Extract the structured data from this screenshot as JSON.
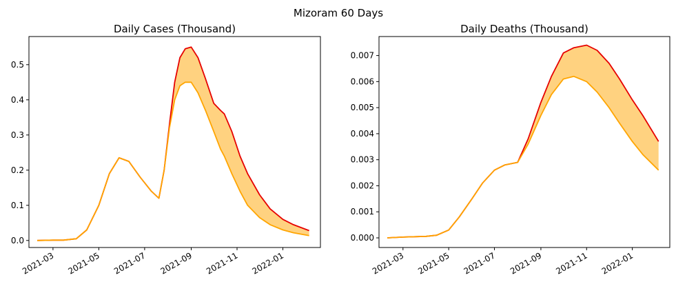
{
  "figure": {
    "suptitle": "Mizoram 60 Days"
  },
  "chart_data": [
    {
      "type": "area",
      "title": "Daily Cases (Thousand)",
      "xlabel": "",
      "ylabel": "",
      "x_ticks": [
        "2021-03",
        "2021-05",
        "2021-07",
        "2021-09",
        "2021-11",
        "2022-01"
      ],
      "y_ticks": [
        "0.0",
        "0.1",
        "0.2",
        "0.3",
        "0.4",
        "0.5"
      ],
      "xlim": [
        "2021-01-28",
        "2022-02-20"
      ],
      "ylim": [
        -0.02,
        0.58
      ],
      "grid": false,
      "colors": {
        "upper": "#e60000",
        "lower": "#ffa500",
        "fill": "#ffd280"
      },
      "x": [
        "2021-02-08",
        "2021-03-01",
        "2021-03-15",
        "2021-04-01",
        "2021-04-15",
        "2021-05-01",
        "2021-05-15",
        "2021-05-28",
        "2021-06-10",
        "2021-06-25",
        "2021-07-10",
        "2021-07-20",
        "2021-07-27",
        "2021-08-03",
        "2021-08-10",
        "2021-08-17",
        "2021-08-24",
        "2021-09-01",
        "2021-09-10",
        "2021-09-20",
        "2021-10-01",
        "2021-10-10",
        "2021-10-15",
        "2021-10-25",
        "2021-11-05",
        "2021-11-15",
        "2021-12-01",
        "2021-12-15",
        "2022-01-01",
        "2022-01-15",
        "2022-02-05"
      ],
      "series": [
        {
          "role": "upper",
          "values": [
            0.0,
            0.001,
            0.001,
            0.005,
            0.03,
            0.1,
            0.19,
            0.235,
            0.225,
            0.18,
            0.14,
            0.12,
            0.2,
            0.33,
            0.45,
            0.52,
            0.545,
            0.55,
            0.52,
            0.46,
            0.39,
            0.37,
            0.36,
            0.31,
            0.24,
            0.19,
            0.13,
            0.09,
            0.06,
            0.045,
            0.028
          ]
        },
        {
          "role": "lower",
          "values": [
            0.0,
            0.001,
            0.001,
            0.005,
            0.03,
            0.1,
            0.19,
            0.235,
            0.225,
            0.18,
            0.14,
            0.12,
            0.2,
            0.32,
            0.4,
            0.44,
            0.45,
            0.45,
            0.42,
            0.37,
            0.31,
            0.26,
            0.24,
            0.19,
            0.14,
            0.1,
            0.065,
            0.045,
            0.03,
            0.022,
            0.014
          ]
        }
      ]
    },
    {
      "type": "area",
      "title": "Daily Deaths (Thousand)",
      "xlabel": "",
      "ylabel": "",
      "x_ticks": [
        "2021-03",
        "2021-05",
        "2021-07",
        "2021-09",
        "2021-11",
        "2022-01"
      ],
      "y_ticks": [
        "0.000",
        "0.001",
        "0.002",
        "0.003",
        "0.004",
        "0.005",
        "0.006",
        "0.007"
      ],
      "xlim": [
        "2021-01-28",
        "2022-02-20"
      ],
      "ylim": [
        -0.00037,
        0.00773
      ],
      "grid": false,
      "colors": {
        "upper": "#e60000",
        "lower": "#ffa500",
        "fill": "#ffd280"
      },
      "x": [
        "2021-02-08",
        "2021-03-01",
        "2021-04-01",
        "2021-04-15",
        "2021-05-01",
        "2021-05-15",
        "2021-06-01",
        "2021-06-15",
        "2021-07-01",
        "2021-07-15",
        "2021-08-01",
        "2021-08-15",
        "2021-09-01",
        "2021-09-15",
        "2021-10-01",
        "2021-10-15",
        "2021-11-01",
        "2021-11-15",
        "2021-12-01",
        "2021-12-15",
        "2022-01-01",
        "2022-01-15",
        "2022-02-05"
      ],
      "series": [
        {
          "role": "upper",
          "values": [
            0.0,
            3e-05,
            6e-05,
            0.0001,
            0.0003,
            0.0008,
            0.0015,
            0.0021,
            0.0026,
            0.0028,
            0.0029,
            0.0038,
            0.0052,
            0.0062,
            0.0071,
            0.0073,
            0.0074,
            0.0072,
            0.0067,
            0.0061,
            0.0053,
            0.0047,
            0.0037
          ]
        },
        {
          "role": "lower",
          "values": [
            0.0,
            3e-05,
            6e-05,
            0.0001,
            0.0003,
            0.0008,
            0.0015,
            0.0021,
            0.0026,
            0.0028,
            0.0029,
            0.0036,
            0.0047,
            0.0055,
            0.0061,
            0.0062,
            0.006,
            0.0056,
            0.005,
            0.0044,
            0.0037,
            0.0032,
            0.0026
          ]
        }
      ]
    }
  ]
}
